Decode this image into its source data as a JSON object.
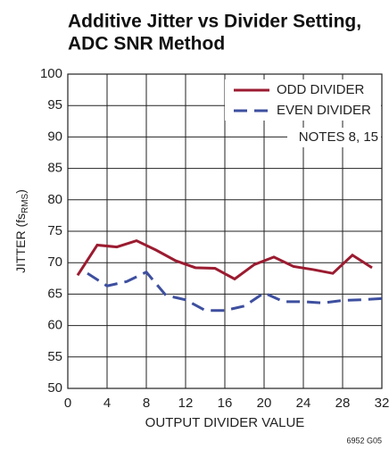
{
  "chart_data": {
    "type": "line",
    "title": [
      "Additive Jitter vs Divider Setting,",
      "ADC SNR Method"
    ],
    "x_label": "OUTPUT DIVIDER VALUE",
    "y_label": [
      "JITTER (fs",
      "RMS",
      ")"
    ],
    "annotation": "NOTES 8, 15",
    "footer": "6952 G05",
    "xlim": [
      0,
      32
    ],
    "xticks": [
      0,
      4,
      8,
      12,
      16,
      20,
      24,
      28,
      32
    ],
    "ylim": [
      50,
      100
    ],
    "yticks": [
      50,
      55,
      60,
      65,
      70,
      75,
      80,
      85,
      90,
      95,
      100
    ],
    "grid": true,
    "legend": "upper right",
    "series": [
      {
        "name": "ODD DIVIDER",
        "color": "#9b1b30",
        "dash": false,
        "x": [
          1,
          3,
          5,
          7,
          9,
          11,
          13,
          15,
          17,
          19,
          21,
          23,
          25,
          27,
          29,
          31
        ],
        "values": [
          68,
          72.8,
          72.5,
          73.5,
          72,
          70.3,
          69.2,
          69.1,
          67.4,
          69.7,
          70.9,
          69.4,
          68.9,
          68.3,
          71.2,
          69.2
        ]
      },
      {
        "name": "EVEN DIVIDER",
        "color": "#3d4f9f",
        "dash": true,
        "x": [
          2,
          4,
          6,
          8,
          10,
          12,
          14,
          16,
          18,
          20,
          22,
          24,
          26,
          28,
          30,
          32
        ],
        "values": [
          68.3,
          66.3,
          67,
          68.5,
          64.8,
          64.1,
          62.4,
          62.4,
          63.1,
          65.2,
          63.8,
          63.8,
          63.6,
          64,
          64.1,
          64.3
        ]
      }
    ]
  }
}
